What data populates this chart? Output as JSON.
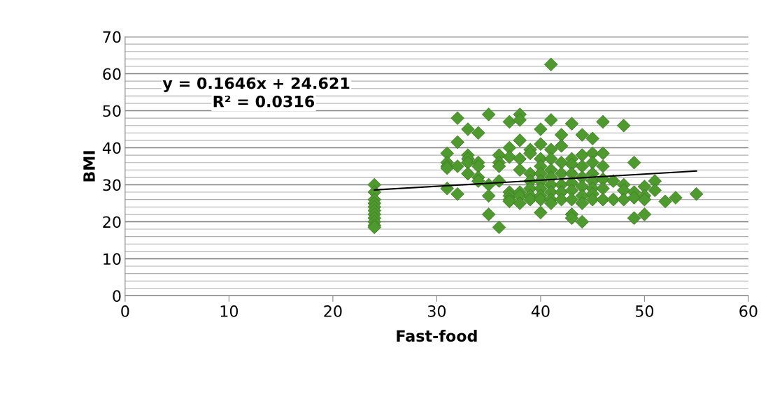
{
  "chart_data": {
    "type": "scatter",
    "xlabel": "Fast-food",
    "ylabel": "BMI",
    "xlim": [
      0,
      60
    ],
    "xticks": [
      0,
      10,
      20,
      30,
      40,
      50,
      60
    ],
    "ylim": [
      0,
      70
    ],
    "yticks": [
      0,
      10,
      20,
      30,
      40,
      50,
      60,
      70
    ],
    "grid": "y",
    "legend": false,
    "annotations": [
      "y = 0.1646x + 24.621",
      "R² = 0.0316"
    ],
    "series": [
      {
        "marker": "diamond",
        "color": "#4f9a2e",
        "x": [
          24,
          24,
          24,
          24,
          24,
          24,
          24,
          24,
          24,
          24,
          24,
          31,
          31,
          31,
          31,
          31,
          32,
          32,
          32,
          32,
          33,
          33,
          33,
          33,
          33,
          34,
          34,
          34,
          34,
          34,
          35,
          35,
          35,
          35,
          36,
          36,
          36,
          36,
          36,
          37,
          37,
          37,
          37,
          37,
          37,
          37,
          38,
          38,
          38,
          38,
          38,
          38,
          38,
          38,
          39,
          39,
          39,
          39,
          39,
          39,
          39,
          40,
          40,
          40,
          40,
          40,
          40,
          40,
          40,
          40,
          40,
          41,
          41,
          41,
          41,
          41,
          41,
          41,
          41,
          41,
          41,
          42,
          42,
          42,
          42,
          42,
          42,
          42,
          43,
          43,
          43,
          43,
          43,
          43,
          43,
          43,
          43,
          44,
          44,
          44,
          44,
          44,
          44,
          44,
          44,
          45,
          45,
          45,
          45,
          45,
          45,
          45,
          45,
          46,
          46,
          46,
          46,
          46,
          46,
          47,
          47,
          48,
          48,
          48,
          48,
          49,
          49,
          49,
          49,
          50,
          50,
          50,
          50,
          51,
          51,
          52,
          53,
          55
        ],
        "values": [
          30,
          28,
          26,
          25,
          24,
          23,
          22,
          21,
          20,
          19,
          18.5,
          38.5,
          36,
          35,
          34.5,
          29,
          48,
          41.5,
          35,
          27.5,
          45,
          38,
          37,
          36,
          33,
          44,
          36,
          35,
          32,
          31,
          49,
          30,
          27,
          22,
          38,
          36,
          35,
          31,
          18.5,
          47,
          40,
          37.5,
          28,
          27,
          26,
          25.5,
          49,
          47.5,
          42,
          37,
          34,
          28,
          27,
          25,
          39.5,
          38.5,
          33,
          31,
          29,
          27,
          26,
          45,
          41,
          37,
          35,
          33,
          31,
          29,
          27,
          26,
          22.5,
          62.5,
          47.5,
          39.5,
          37,
          34,
          32,
          30,
          28,
          26,
          25,
          43.5,
          40.5,
          36,
          33,
          30,
          28,
          26,
          46.5,
          37,
          35.5,
          33,
          30.5,
          28.5,
          26,
          22,
          21,
          43.5,
          38,
          35,
          32,
          29.5,
          27,
          25,
          20,
          42.5,
          38.5,
          36,
          33,
          31,
          29,
          27.5,
          26,
          47,
          38.5,
          35,
          31.5,
          29,
          26,
          31,
          26,
          46,
          30,
          28.5,
          26,
          36,
          28,
          26.5,
          21,
          29.5,
          27,
          26,
          22,
          31,
          28.5,
          25.5,
          26.5,
          27.5
        ]
      },
      {
        "type": "line",
        "color": "#000000",
        "x": [
          24,
          55
        ],
        "values": [
          28.6,
          33.7
        ]
      }
    ]
  }
}
